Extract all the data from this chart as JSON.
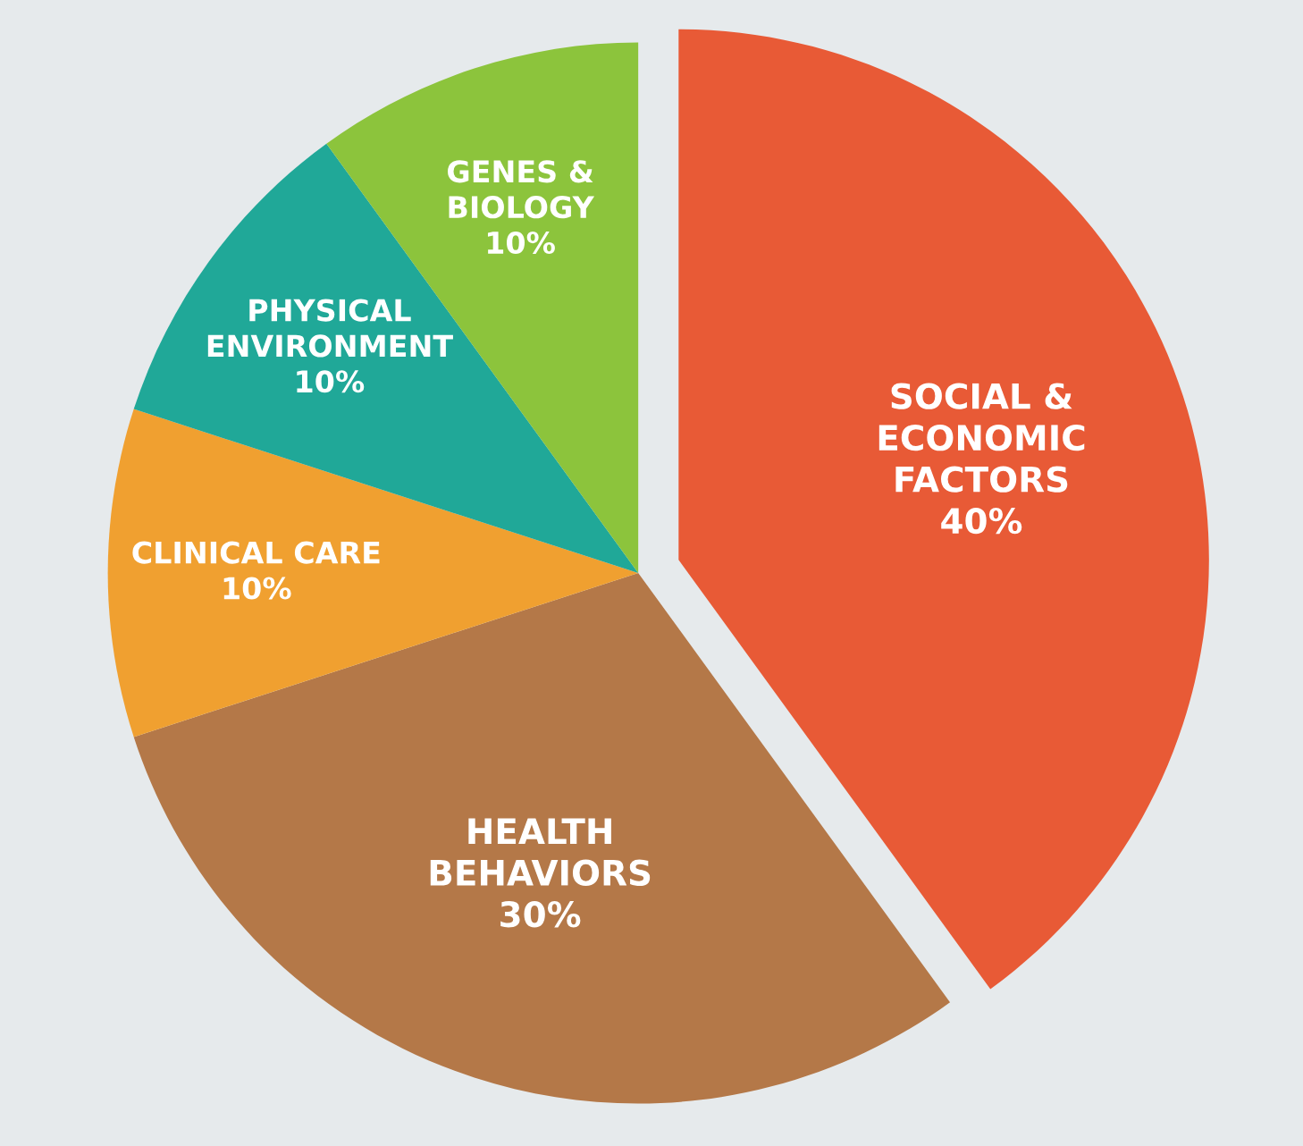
{
  "chart_data": {
    "type": "pie",
    "categories": [
      "SOCIAL &\nECONOMIC\nFACTORS",
      "HEALTH\nBEHAVIORS",
      "CLINICAL CARE",
      "PHYSICAL\nENVIRONMENT",
      "GENES &\nBIOLOGY"
    ],
    "values": [
      40,
      30,
      10,
      10,
      10
    ],
    "value_labels": [
      "40%",
      "30%",
      "10%",
      "10%",
      "10%"
    ],
    "colors": [
      "#e85a36",
      "#b47848",
      "#f0a030",
      "#20a898",
      "#8cc43c"
    ],
    "legend": false
  }
}
